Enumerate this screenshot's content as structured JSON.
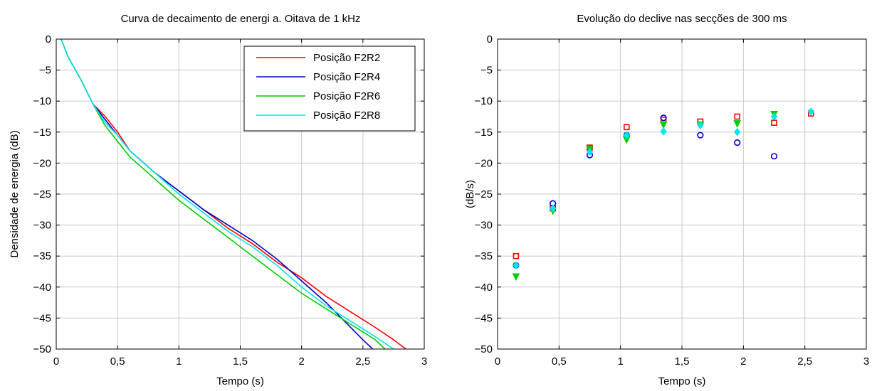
{
  "chart_data": [
    {
      "type": "line",
      "title": "Curva de decaimento de energi a. Oitava de 1 kHz",
      "xlabel": "Tempo (s)",
      "ylabel": "Densidade de energia (dB)",
      "xlim": [
        0,
        3
      ],
      "ylim": [
        -50,
        0
      ],
      "xticks": [
        0,
        0.5,
        1,
        1.5,
        2,
        2.5,
        3
      ],
      "xtick_labels": [
        "0",
        "0,5",
        "1",
        "1,5",
        "2",
        "2,5",
        "3"
      ],
      "yticks": [
        0,
        -5,
        -10,
        -15,
        -20,
        -25,
        -30,
        -35,
        -40,
        -45,
        -50
      ],
      "ytick_labels": [
        "0",
        "−5",
        "−10",
        "−15",
        "−20",
        "−25",
        "−30",
        "−35",
        "−40",
        "−45",
        "−50"
      ],
      "grid": true,
      "legend_position": "top-right",
      "series": [
        {
          "name": "Posição F2R2",
          "color": "#ff0000",
          "x": [
            0.04,
            0.1,
            0.2,
            0.3,
            0.4,
            0.5,
            0.6,
            0.8,
            1.0,
            1.2,
            1.4,
            1.6,
            1.8,
            2.0,
            2.2,
            2.4,
            2.6,
            2.75,
            2.85
          ],
          "y": [
            0,
            -3,
            -6.5,
            -10.5,
            -12.5,
            -15,
            -18,
            -21.5,
            -24.5,
            -27.5,
            -30.5,
            -33,
            -36,
            -38.5,
            -41.5,
            -44,
            -46.5,
            -48.5,
            -50
          ]
        },
        {
          "name": "Posição F2R4",
          "color": "#0000cc",
          "x": [
            0.04,
            0.1,
            0.2,
            0.3,
            0.4,
            0.5,
            0.6,
            0.8,
            1.0,
            1.2,
            1.4,
            1.6,
            1.8,
            2.0,
            2.2,
            2.35,
            2.5,
            2.58
          ],
          "y": [
            0,
            -3,
            -6.5,
            -10.5,
            -13,
            -15.5,
            -18,
            -21.5,
            -24.5,
            -27.5,
            -30,
            -32.5,
            -35.5,
            -39,
            -42.5,
            -45.5,
            -48.5,
            -50
          ]
        },
        {
          "name": "Posição F2R6",
          "color": "#00cc00",
          "x": [
            0.04,
            0.1,
            0.2,
            0.3,
            0.4,
            0.5,
            0.6,
            0.8,
            1.0,
            1.2,
            1.4,
            1.6,
            1.8,
            2.0,
            2.2,
            2.4,
            2.6,
            2.68
          ],
          "y": [
            0,
            -3,
            -6.5,
            -10.5,
            -14,
            -16.5,
            -19,
            -22.5,
            -26,
            -29,
            -32,
            -35,
            -38,
            -41,
            -43.5,
            -46,
            -48.5,
            -50
          ]
        },
        {
          "name": "Posição F2R8",
          "color": "#00e5ee",
          "x": [
            0.04,
            0.1,
            0.2,
            0.3,
            0.4,
            0.5,
            0.6,
            0.8,
            1.0,
            1.2,
            1.4,
            1.6,
            1.8,
            2.0,
            2.2,
            2.4,
            2.6,
            2.75
          ],
          "y": [
            0,
            -3,
            -6.5,
            -10.5,
            -13.5,
            -15.5,
            -18,
            -21.5,
            -25,
            -28,
            -31,
            -33.5,
            -36.5,
            -40,
            -43,
            -45.5,
            -48,
            -50
          ]
        }
      ]
    },
    {
      "type": "scatter",
      "title": "Evolução do declive nas secções de 300 ms",
      "xlabel": "Tempo (s)",
      "ylabel": "(dB/s)",
      "xlim": [
        0,
        3
      ],
      "ylim": [
        -50,
        0
      ],
      "xticks": [
        0,
        0.5,
        1,
        1.5,
        2,
        2.5,
        3
      ],
      "xtick_labels": [
        "0",
        "0,5",
        "1",
        "1,5",
        "2",
        "2,5",
        "3"
      ],
      "yticks": [
        0,
        -5,
        -10,
        -15,
        -20,
        -25,
        -30,
        -35,
        -40,
        -45,
        -50
      ],
      "ytick_labels": [
        "0",
        "−5",
        "−10",
        "−15",
        "−20",
        "−25",
        "−30",
        "−35",
        "−40",
        "−45",
        "−50"
      ],
      "grid": true,
      "series": [
        {
          "marker": "square",
          "color": "#ff0000",
          "x": [
            0.15,
            0.45,
            0.75,
            1.05,
            1.35,
            1.65,
            1.95,
            2.25,
            2.55
          ],
          "y": [
            -35,
            -27.3,
            -17.5,
            -14.2,
            -13,
            -13.3,
            -12.5,
            -13.5,
            -12
          ]
        },
        {
          "marker": "circle",
          "color": "#0000cc",
          "x": [
            0.15,
            0.45,
            0.75,
            1.05,
            1.35,
            1.65,
            1.95,
            2.25
          ],
          "y": [
            -36.5,
            -26.5,
            -18.7,
            -15.5,
            -12.7,
            -15.5,
            -16.7,
            -18.9
          ]
        },
        {
          "marker": "triangle-down",
          "color": "#00cc00",
          "x": [
            0.15,
            0.45,
            0.75,
            1.05,
            1.35,
            1.65,
            1.95,
            2.25
          ],
          "y": [
            -38.3,
            -27.7,
            -17.7,
            -16.2,
            -13.8,
            -13.8,
            -13.6,
            -12.1
          ]
        },
        {
          "marker": "diamond",
          "color": "#00e5ee",
          "x": [
            0.15,
            0.45,
            0.75,
            1.05,
            1.35,
            1.65,
            1.95,
            2.25,
            2.55
          ],
          "y": [
            -36.5,
            -27.3,
            -18.2,
            -15.5,
            -14.9,
            -13.9,
            -15,
            -12.5,
            -11.7
          ]
        }
      ]
    }
  ]
}
